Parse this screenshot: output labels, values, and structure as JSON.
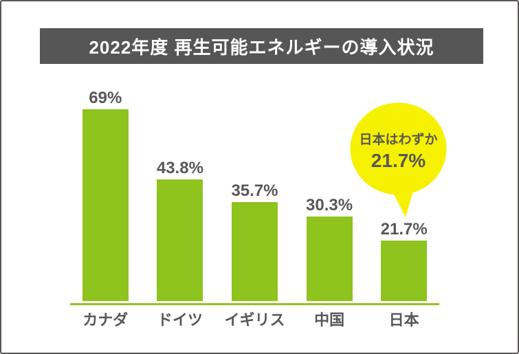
{
  "header": {
    "title": "2022年度 再生可能エネルギーの導入状況",
    "bg": "#565656",
    "text_color": "#ffffff"
  },
  "chart_data": {
    "type": "bar",
    "title": "2022年度 再生可能エネルギーの導入状況",
    "categories": [
      "カナダ",
      "ドイツ",
      "イギリス",
      "中国",
      "日本"
    ],
    "values": [
      69,
      43.8,
      35.7,
      30.3,
      21.7
    ],
    "value_labels": [
      "69%",
      "43.8%",
      "35.7%",
      "30.3%",
      "21.7%"
    ],
    "unit": "%",
    "ylim": [
      0,
      100
    ],
    "grid": false,
    "legend": "none",
    "y_axis_visible": false,
    "bar_color": "#8FC31E",
    "baseline_color": "#8FC31E",
    "label_color": "#595757"
  },
  "annotation": {
    "line1": "日本はわずか",
    "line2": "21.7%",
    "bubble_color": "#F5F100",
    "text_color": "#595757",
    "points_to": "日本"
  },
  "page": {
    "background": "#ffffff",
    "border_color": "#595757"
  }
}
